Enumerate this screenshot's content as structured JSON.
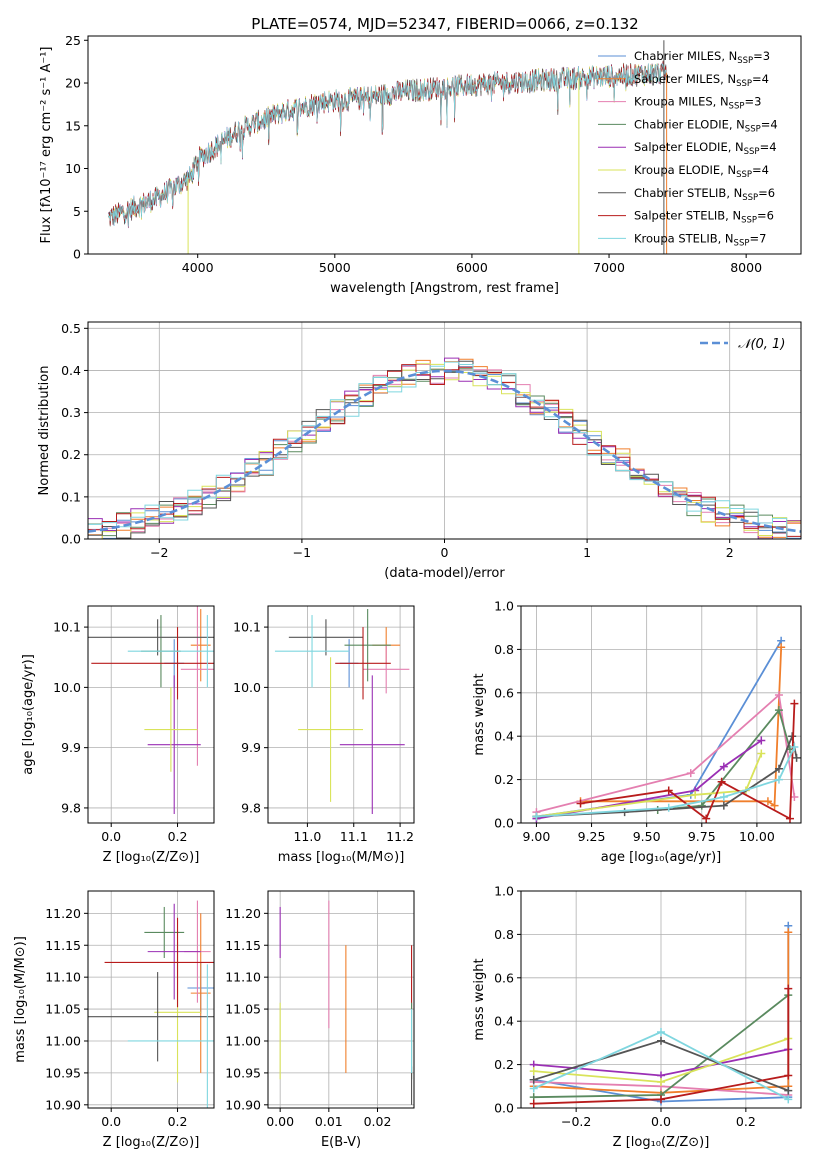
{
  "figure": {
    "title": "PLATE=0574, MJD=52347, FIBERID=0066, z=0.132"
  },
  "colors": {
    "Chabrier MILES": "#5b8fd6",
    "Salpeter MILES": "#f07f2c",
    "Kroupa MILES": "#e47fb0",
    "Chabrier ELODIE": "#5a8a5f",
    "Salpeter ELODIE": "#9a2fb4",
    "Kroupa ELODIE": "#d9e35a",
    "Chabrier STELIB": "#555555",
    "Salpeter STELIB": "#b81c1c",
    "Kroupa STELIB": "#7fd6df"
  },
  "chart_data": [
    {
      "id": "spectrum",
      "type": "line",
      "title": "PLATE=0574, MJD=52347, FIBERID=0066, z=0.132",
      "xlabel": "wavelength [Angstrom, rest frame]",
      "ylabel": "Flux [fλ10⁻¹⁷ erg cm⁻² s⁻¹ A⁻¹]",
      "xlim": [
        3200,
        8400
      ],
      "ylim": [
        0,
        25.5
      ],
      "xticks": [
        4000,
        5000,
        6000,
        7000,
        8000
      ],
      "yticks": [
        0,
        5,
        10,
        15,
        20,
        25
      ],
      "legend_position": "upper-right",
      "legend": [
        {
          "name": "Chabrier MILES",
          "nssp": "3"
        },
        {
          "name": "Salpeter MILES",
          "nssp": "4"
        },
        {
          "name": "Kroupa MILES",
          "nssp": "3"
        },
        {
          "name": "Chabrier ELODIE",
          "nssp": "4"
        },
        {
          "name": "Salpeter ELODIE",
          "nssp": "4"
        },
        {
          "name": "Kroupa ELODIE",
          "nssp": "4"
        },
        {
          "name": "Chabrier STELIB",
          "nssp": "6"
        },
        {
          "name": "Salpeter STELIB",
          "nssp": "6"
        },
        {
          "name": "Kroupa STELIB",
          "nssp": "7"
        }
      ],
      "continuum_knots": [
        [
          3350,
          4.2
        ],
        [
          3500,
          5.2
        ],
        [
          3700,
          6.5
        ],
        [
          3950,
          9.0
        ],
        [
          4000,
          11.0
        ],
        [
          4300,
          14.5
        ],
        [
          4600,
          16.5
        ],
        [
          4900,
          17.8
        ],
        [
          5200,
          18.2
        ],
        [
          5500,
          19.0
        ],
        [
          6000,
          19.8
        ],
        [
          6500,
          20.3
        ],
        [
          7000,
          20.8
        ],
        [
          7400,
          21.2
        ]
      ],
      "spikes": [
        {
          "x": 3930,
          "y": 0,
          "series": "Kroupa ELODIE"
        },
        {
          "x": 6780,
          "y": 0,
          "series": "Kroupa ELODIE"
        },
        {
          "x": 7420,
          "y": 0,
          "series": "Salpeter MILES"
        },
        {
          "x": 7400,
          "y": 25,
          "series": "Chabrier STELIB"
        }
      ]
    },
    {
      "id": "residuals",
      "type": "histogram",
      "xlabel": "(data-model)/error",
      "ylabel": "Normed distribution",
      "xlim": [
        -2.5,
        2.5
      ],
      "ylim": [
        0,
        0.515
      ],
      "xticks": [
        -2,
        -1,
        0,
        1,
        2
      ],
      "xtick_labels": [
        "−2",
        "−1",
        "0",
        "1",
        "2"
      ],
      "yticks": [
        0.0,
        0.1,
        0.2,
        0.3,
        0.4,
        0.5
      ],
      "ytick_labels": [
        "0.0",
        "0.1",
        "0.2",
        "0.3",
        "0.4",
        "0.5"
      ],
      "bin_width": 0.1,
      "legend": [
        "𝒩(0, 1)"
      ],
      "legend_position": "upper-right",
      "reference_curve": "N(0,1) dashed"
    },
    {
      "id": "age-vs-Z",
      "type": "errorbar",
      "xlabel": "Z [log₁₀(Z/Z⊙)]",
      "ylabel": "age  [log₁₀(age/yr)]",
      "xlim": [
        -0.07,
        0.31
      ],
      "ylim": [
        9.775,
        10.135
      ],
      "xticks": [
        0.0,
        0.2
      ],
      "xtick_labels": [
        "0.0",
        "0.2"
      ],
      "yticks": [
        9.8,
        9.9,
        10.0,
        10.1
      ],
      "ytick_labels": [
        "9.8",
        "9.9",
        "10.0",
        "10.1"
      ],
      "points": [
        {
          "series": "Chabrier MILES",
          "x": 0.19,
          "xerr": 0.03,
          "y": 10.04,
          "yerr": 0.04
        },
        {
          "series": "Salpeter MILES",
          "x": 0.27,
          "xerr": 0.03,
          "y": 10.07,
          "yerr": 0.06
        },
        {
          "series": "Kroupa MILES",
          "x": 0.26,
          "xerr": 0.05,
          "y": 10.03,
          "yerr": 0.16
        },
        {
          "series": "Chabrier ELODIE",
          "x": 0.15,
          "xerr": 0.06,
          "y": 10.06,
          "yerr": 0.06
        },
        {
          "series": "Salpeter ELODIE",
          "x": 0.19,
          "xerr": 0.08,
          "y": 9.905,
          "yerr": 0.115
        },
        {
          "series": "Kroupa ELODIE",
          "x": 0.18,
          "xerr": 0.08,
          "y": 9.93,
          "yerr": 0.07
        },
        {
          "series": "Chabrier STELIB",
          "x": 0.14,
          "xerr": 0.25,
          "y": 10.083,
          "yerr": 0.03
        },
        {
          "series": "Salpeter STELIB",
          "x": 0.2,
          "xerr": 0.26,
          "y": 10.04,
          "yerr": 0.06
        },
        {
          "series": "Kroupa STELIB",
          "x": 0.29,
          "xerr": 0.24,
          "y": 10.06,
          "yerr": 0.06
        }
      ]
    },
    {
      "id": "age-vs-mass",
      "type": "errorbar",
      "xlabel": "mass [log₁₀(M/M⊙)]",
      "xlim": [
        10.915,
        11.23
      ],
      "ylim": [
        9.775,
        10.135
      ],
      "xticks": [
        11.0,
        11.1,
        11.2
      ],
      "xtick_labels": [
        "11.0",
        "11.1",
        "11.2"
      ],
      "yticks": [
        9.8,
        9.9,
        10.0,
        10.1
      ],
      "ytick_labels": [
        "9.8",
        "9.9",
        "10.0",
        "10.1"
      ],
      "points": [
        {
          "series": "Chabrier MILES",
          "x": 11.09,
          "xerr": 0.02,
          "y": 10.04,
          "yerr": 0.04
        },
        {
          "series": "Salpeter MILES",
          "x": 11.17,
          "xerr": 0.03,
          "y": 10.07,
          "yerr": 0.03
        },
        {
          "series": "Kroupa MILES",
          "x": 11.17,
          "xerr": 0.05,
          "y": 10.03,
          "yerr": 0.04
        },
        {
          "series": "Chabrier ELODIE",
          "x": 11.13,
          "xerr": 0.05,
          "y": 10.07,
          "yerr": 0.06
        },
        {
          "series": "Salpeter ELODIE",
          "x": 11.14,
          "xerr": 0.07,
          "y": 9.905,
          "yerr": 0.115
        },
        {
          "series": "Kroupa ELODIE",
          "x": 11.05,
          "xerr": 0.07,
          "y": 9.93,
          "yerr": 0.12
        },
        {
          "series": "Chabrier STELIB",
          "x": 11.04,
          "xerr": 0.08,
          "y": 10.083,
          "yerr": 0.03
        },
        {
          "series": "Salpeter STELIB",
          "x": 11.12,
          "xerr": 0.06,
          "y": 10.04,
          "yerr": 0.06
        },
        {
          "series": "Kroupa STELIB",
          "x": 11.01,
          "xerr": 0.08,
          "y": 10.06,
          "yerr": 0.06
        }
      ]
    },
    {
      "id": "mass-weight-vs-age",
      "type": "line",
      "xlabel": "age  [log₁₀(age/yr)]",
      "ylabel": "mass weight",
      "xlim": [
        8.93,
        10.2
      ],
      "ylim": [
        0,
        1.0
      ],
      "xticks": [
        9.0,
        9.25,
        9.5,
        9.75,
        10.0
      ],
      "xtick_labels": [
        "9.00",
        "9.25",
        "9.50",
        "9.75",
        "10.00"
      ],
      "yticks": [
        0.0,
        0.2,
        0.4,
        0.6,
        0.8,
        1.0
      ],
      "ytick_labels": [
        "0.0",
        "0.2",
        "0.4",
        "0.6",
        "0.8",
        "1.0"
      ],
      "series": [
        {
          "name": "Chabrier MILES",
          "x": [
            9.0,
            9.7,
            10.11
          ],
          "y": [
            0.03,
            0.13,
            0.84
          ]
        },
        {
          "name": "Salpeter MILES",
          "x": [
            9.2,
            10.05,
            10.08,
            10.11
          ],
          "y": [
            0.1,
            0.1,
            0.08,
            0.81
          ]
        },
        {
          "name": "Kroupa MILES",
          "x": [
            9.0,
            9.7,
            10.1,
            10.17
          ],
          "y": [
            0.05,
            0.23,
            0.59,
            0.12
          ]
        },
        {
          "name": "Chabrier ELODIE",
          "x": [
            9.55,
            9.75,
            10.1,
            10.15
          ],
          "y": [
            0.06,
            0.08,
            0.52,
            0.34
          ]
        },
        {
          "name": "Salpeter ELODIE",
          "x": [
            9.0,
            9.72,
            9.85,
            10.02
          ],
          "y": [
            0.02,
            0.15,
            0.26,
            0.38
          ]
        },
        {
          "name": "Kroupa ELODIE",
          "x": [
            9.0,
            9.72,
            9.95,
            10.02
          ],
          "y": [
            0.03,
            0.13,
            0.15,
            0.32
          ]
        },
        {
          "name": "Chabrier STELIB",
          "x": [
            9.0,
            9.4,
            9.85,
            10.1,
            10.16,
            10.18
          ],
          "y": [
            0.03,
            0.05,
            0.08,
            0.25,
            0.4,
            0.3
          ]
        },
        {
          "name": "Salpeter STELIB",
          "x": [
            9.2,
            9.6,
            9.77,
            9.84,
            10.15,
            10.17
          ],
          "y": [
            0.09,
            0.15,
            0.02,
            0.19,
            0.02,
            0.55
          ]
        },
        {
          "name": "Kroupa STELIB",
          "x": [
            9.0,
            9.6,
            9.85,
            10.1,
            10.17
          ],
          "y": [
            0.03,
            0.07,
            0.12,
            0.2,
            0.35
          ]
        }
      ]
    },
    {
      "id": "mass-vs-Z",
      "type": "errorbar",
      "xlabel": "Z [log₁₀(Z/Z⊙)]",
      "ylabel": "mass [log₁₀(M/M⊙)]",
      "xlim": [
        -0.07,
        0.31
      ],
      "ylim": [
        10.895,
        11.235
      ],
      "xticks": [
        0.0,
        0.2
      ],
      "xtick_labels": [
        "0.0",
        "0.2"
      ],
      "yticks": [
        10.9,
        10.95,
        11.0,
        11.05,
        11.1,
        11.15,
        11.2
      ],
      "ytick_labels": [
        "10.90",
        "10.95",
        "11.00",
        "11.05",
        "11.10",
        "11.15",
        "11.20"
      ],
      "points": [
        {
          "series": "Chabrier MILES",
          "x": 0.27,
          "xerr": 0.04,
          "y": 11.083,
          "yerr": 0.04
        },
        {
          "series": "Salpeter MILES",
          "x": 0.27,
          "xerr": 0.03,
          "y": 11.075,
          "yerr": 0.125
        },
        {
          "series": "Kroupa MILES",
          "x": 0.26,
          "xerr": 0.04,
          "y": 11.14,
          "yerr": 0.08
        },
        {
          "series": "Chabrier ELODIE",
          "x": 0.16,
          "xerr": 0.06,
          "y": 11.17,
          "yerr": 0.04
        },
        {
          "series": "Salpeter ELODIE",
          "x": 0.19,
          "xerr": 0.08,
          "y": 11.14,
          "yerr": 0.075
        },
        {
          "series": "Kroupa ELODIE",
          "x": 0.2,
          "xerr": 0.07,
          "y": 11.045,
          "yerr": 0.11
        },
        {
          "series": "Chabrier STELIB",
          "x": 0.14,
          "xerr": 0.26,
          "y": 11.038,
          "yerr": 0.07
        },
        {
          "series": "Salpeter STELIB",
          "x": 0.2,
          "xerr": 0.22,
          "y": 11.123,
          "yerr": 0.07
        },
        {
          "series": "Kroupa STELIB",
          "x": 0.29,
          "xerr": 0.24,
          "y": 11.0,
          "yerr": 0.12
        }
      ]
    },
    {
      "id": "mass-vs-EBV",
      "type": "errorbar",
      "xlabel": "E(B-V)",
      "xlim": [
        -0.0025,
        0.0275
      ],
      "ylim": [
        10.895,
        11.235
      ],
      "xticks": [
        0.0,
        0.01,
        0.02
      ],
      "xtick_labels": [
        "0.00",
        "0.01",
        "0.02"
      ],
      "yticks": [
        10.9,
        10.95,
        11.0,
        11.05,
        11.1,
        11.15,
        11.2
      ],
      "ytick_labels": [
        "10.90",
        "10.95",
        "11.00",
        "11.05",
        "11.10",
        "11.15",
        "11.20"
      ],
      "points": [
        {
          "series": "Salpeter ELODIE",
          "x": 0.0,
          "xerr": 0,
          "y": 11.17,
          "yerr": 0.04
        },
        {
          "series": "Kroupa ELODIE",
          "x": 0.0,
          "xerr": 0,
          "y": 11.0,
          "yerr": 0.06
        },
        {
          "series": "Kroupa MILES",
          "x": 0.01,
          "xerr": 0,
          "y": 11.12,
          "yerr": 0.1
        },
        {
          "series": "Salpeter MILES",
          "x": 0.0135,
          "xerr": 0,
          "y": 11.05,
          "yerr": 0.1
        },
        {
          "series": "Salpeter STELIB",
          "x": 0.027,
          "xerr": 0,
          "y": 11.1,
          "yerr": 0.05
        },
        {
          "series": "Chabrier ELODIE",
          "x": 0.027,
          "xerr": 0,
          "y": 11.0,
          "yerr": 0.06
        },
        {
          "series": "Chabrier STELIB",
          "x": 0.027,
          "xerr": 0,
          "y": 10.93,
          "yerr": 0.03
        },
        {
          "series": "Kroupa STELIB",
          "x": 0.027,
          "xerr": 0,
          "y": 11.0,
          "yerr": 0.05
        }
      ]
    },
    {
      "id": "mass-weight-vs-Z",
      "type": "line",
      "xlabel": "Z [log₁₀(Z/Z⊙)]",
      "ylabel": "mass weight",
      "xlim": [
        -0.33,
        0.33
      ],
      "ylim": [
        0,
        1.0
      ],
      "xticks": [
        -0.2,
        0.0,
        0.2
      ],
      "xtick_labels": [
        "−0.2",
        "0.0",
        "0.2"
      ],
      "yticks": [
        0.0,
        0.2,
        0.4,
        0.6,
        0.8,
        1.0
      ],
      "ytick_labels": [
        "0.0",
        "0.2",
        "0.4",
        "0.6",
        "0.8",
        "1.0"
      ],
      "series": [
        {
          "name": "Chabrier MILES",
          "x": [
            -0.3,
            0.0,
            0.3,
            0.3
          ],
          "y": [
            0.13,
            0.03,
            0.05,
            0.84
          ]
        },
        {
          "name": "Salpeter MILES",
          "x": [
            -0.3,
            0.0,
            0.3,
            0.3
          ],
          "y": [
            0.1,
            0.07,
            0.1,
            0.81
          ]
        },
        {
          "name": "Kroupa MILES",
          "x": [
            -0.3,
            0.0,
            0.3
          ],
          "y": [
            0.12,
            0.1,
            0.06
          ]
        },
        {
          "name": "Chabrier ELODIE",
          "x": [
            -0.3,
            0.0,
            0.3
          ],
          "y": [
            0.05,
            0.06,
            0.52
          ]
        },
        {
          "name": "Salpeter ELODIE",
          "x": [
            -0.3,
            0.0,
            0.3
          ],
          "y": [
            0.2,
            0.15,
            0.27
          ]
        },
        {
          "name": "Kroupa ELODIE",
          "x": [
            -0.3,
            0.0,
            0.3
          ],
          "y": [
            0.17,
            0.12,
            0.32
          ]
        },
        {
          "name": "Chabrier STELIB",
          "x": [
            -0.3,
            0.0,
            0.3
          ],
          "y": [
            0.13,
            0.31,
            0.08
          ]
        },
        {
          "name": "Salpeter STELIB",
          "x": [
            -0.3,
            0.0,
            0.3,
            0.3
          ],
          "y": [
            0.02,
            0.04,
            0.15,
            0.55
          ]
        },
        {
          "name": "Kroupa STELIB",
          "x": [
            -0.3,
            0.0,
            0.3
          ],
          "y": [
            0.09,
            0.35,
            0.04
          ]
        }
      ]
    }
  ]
}
